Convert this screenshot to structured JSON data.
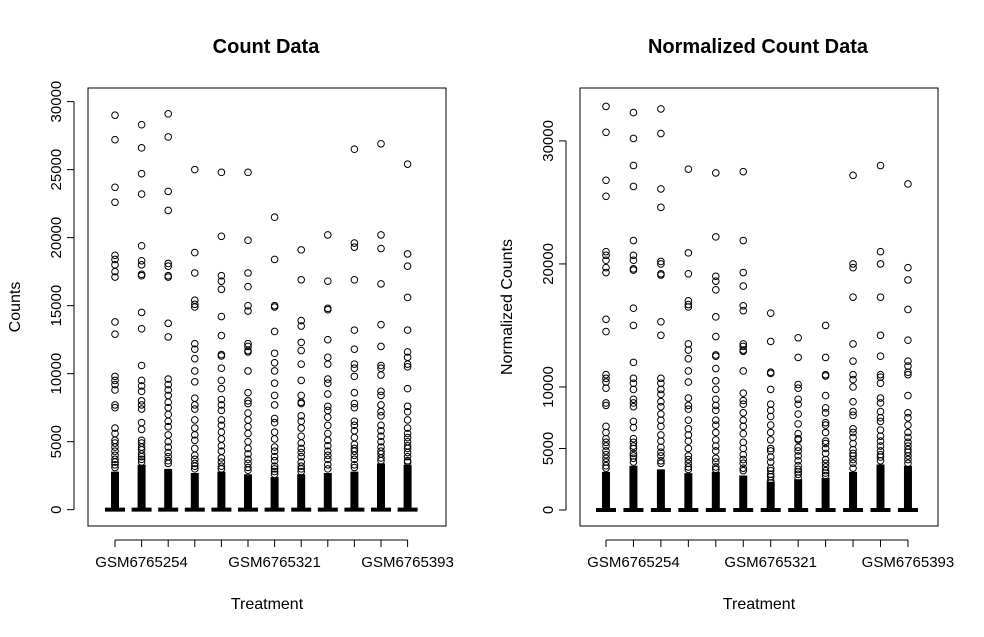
{
  "chart_data": [
    {
      "type": "boxplot",
      "title": "Count Data",
      "xlabel": "Treatment",
      "ylabel": "Counts",
      "ylim": [
        -1200,
        31000
      ],
      "yticks": [
        0,
        5000,
        10000,
        15000,
        20000,
        25000,
        30000
      ],
      "y_tick_labels": [
        "0",
        "5000",
        "10000",
        "15000",
        "20000",
        "25000",
        "30000"
      ],
      "x_tick_labels": [
        "GSM6765254",
        "GSM6765321",
        "GSM6765393"
      ],
      "x_tick_positions": [
        2,
        7,
        12
      ],
      "n_groups": 12,
      "box_whisker_top": [
        2800,
        3300,
        3000,
        2700,
        2800,
        2600,
        2400,
        2600,
        2700,
        2800,
        3400,
        3300
      ],
      "outliers": [
        [
          29000,
          27200,
          23700,
          22600,
          18700,
          18400,
          18000,
          17500,
          17100,
          13800,
          12900,
          9800,
          9500,
          9200,
          8800,
          7700,
          7500,
          6000,
          5600,
          5100,
          4900,
          4600,
          4300,
          4000,
          3700,
          3500,
          3300,
          3100
        ],
        [
          28300,
          26600,
          24700,
          23200,
          19400,
          18300,
          18000,
          17300,
          17200,
          14500,
          13300,
          10600,
          9500,
          9100,
          8700,
          8000,
          7700,
          7400,
          6400,
          5900,
          5100,
          4900,
          4600,
          4400,
          4100,
          3900,
          3700,
          3500
        ],
        [
          29100,
          27400,
          23400,
          22000,
          18100,
          17900,
          17200,
          17100,
          13700,
          12700,
          9600,
          9200,
          8800,
          8400,
          7900,
          7500,
          7000,
          6500,
          6100,
          5500,
          5000,
          4600,
          4200,
          3900,
          3600,
          3400
        ],
        [
          25000,
          18900,
          17400,
          15400,
          15100,
          14900,
          12200,
          11800,
          11100,
          10200,
          9400,
          8200,
          7700,
          7400,
          6600,
          6000,
          5500,
          5100,
          4500,
          4000,
          3700,
          3400,
          3200,
          3000
        ],
        [
          24800,
          20100,
          17200,
          16800,
          16200,
          14200,
          12800,
          11400,
          11300,
          10400,
          9500,
          8900,
          8100,
          7700,
          7300,
          6600,
          6200,
          5700,
          5200,
          4700,
          4300,
          3800,
          3500,
          3200,
          3000
        ],
        [
          24800,
          19800,
          17400,
          16400,
          15000,
          14600,
          12200,
          12000,
          11700,
          11600,
          10200,
          8600,
          8000,
          7800,
          7100,
          6600,
          6100,
          5600,
          5000,
          4500,
          4100,
          3700,
          3400,
          3100,
          2900
        ],
        [
          21500,
          18400,
          15000,
          14900,
          13100,
          11500,
          10800,
          10200,
          9300,
          8400,
          7700,
          6700,
          6400,
          5700,
          5200,
          4600,
          4300,
          3900,
          3600,
          3200,
          3000,
          2800,
          2600
        ],
        [
          19100,
          16900,
          13900,
          13500,
          12300,
          11700,
          10700,
          9500,
          8400,
          7900,
          7800,
          6900,
          6500,
          6000,
          5400,
          4900,
          4500,
          4200,
          3900,
          3500,
          3200,
          3000,
          2800
        ],
        [
          20200,
          16800,
          14800,
          14700,
          12500,
          11200,
          10700,
          9600,
          9300,
          8500,
          7600,
          7300,
          6800,
          6200,
          5600,
          5100,
          4700,
          4300,
          4000,
          3700,
          3300,
          3000
        ],
        [
          26500,
          19600,
          19300,
          16900,
          13200,
          11800,
          10700,
          10400,
          9800,
          8600,
          7800,
          7500,
          6500,
          6200,
          5800,
          5300,
          4800,
          4500,
          4300,
          4000,
          3700,
          3300,
          3100
        ],
        [
          26900,
          20200,
          19200,
          16600,
          13600,
          12000,
          10600,
          10400,
          9900,
          8700,
          8400,
          7700,
          7200,
          6900,
          6200,
          5800,
          5400,
          5000,
          4600,
          4300,
          4100,
          3800,
          3600
        ],
        [
          25400,
          18800,
          17900,
          15600,
          13200,
          11600,
          11200,
          10700,
          10500,
          8900,
          7600,
          7200,
          6600,
          6000,
          5600,
          5300,
          5000,
          4700,
          4500,
          4200,
          3900,
          3600,
          3500
        ]
      ]
    },
    {
      "type": "boxplot",
      "title": "Normalized Count Data",
      "xlabel": "Treatment",
      "ylabel": "Normalized Counts",
      "ylim": [
        -1300,
        34300
      ],
      "yticks": [
        0,
        5000,
        10000,
        20000,
        30000
      ],
      "y_tick_labels": [
        "0",
        "5000",
        "10000",
        "20000",
        "30000"
      ],
      "x_tick_labels": [
        "GSM6765254",
        "GSM6765321",
        "GSM6765393"
      ],
      "x_tick_positions": [
        2,
        7,
        12
      ],
      "n_groups": 12,
      "box_whisker_top": [
        3100,
        3600,
        3300,
        3000,
        3100,
        2800,
        2300,
        2500,
        2600,
        3100,
        3700,
        3600
      ],
      "outliers": [
        [
          32800,
          30700,
          26800,
          25500,
          21000,
          20700,
          20300,
          19700,
          19300,
          15500,
          14500,
          11000,
          10700,
          10400,
          9900,
          8700,
          8500,
          6800,
          6300,
          5800,
          5500,
          5200,
          4800,
          4500,
          4200,
          3900,
          3600,
          3400
        ],
        [
          32300,
          30200,
          28000,
          26300,
          21900,
          20700,
          20300,
          19600,
          19500,
          16400,
          15000,
          12000,
          10700,
          10300,
          9800,
          9000,
          8700,
          8400,
          7200,
          6700,
          5800,
          5500,
          5200,
          5000,
          4600,
          4400,
          4200,
          3900
        ],
        [
          32600,
          30600,
          26100,
          24600,
          20200,
          20000,
          19200,
          19100,
          15300,
          14200,
          10700,
          10300,
          9800,
          9400,
          8800,
          8400,
          7800,
          7300,
          6800,
          6100,
          5600,
          5100,
          4700,
          4400,
          4000,
          3800
        ],
        [
          27700,
          20900,
          19200,
          17000,
          16700,
          16500,
          13500,
          13000,
          12300,
          11300,
          10400,
          9100,
          8500,
          8200,
          7300,
          6600,
          6100,
          5600,
          5000,
          4400,
          4100,
          3800,
          3500,
          3300
        ],
        [
          27400,
          22200,
          19000,
          18600,
          17900,
          15700,
          14100,
          12600,
          12500,
          11500,
          10500,
          9800,
          9000,
          8500,
          8100,
          7300,
          6900,
          6300,
          5700,
          5200,
          4800,
          4200,
          3900,
          3500,
          3300
        ],
        [
          27500,
          21900,
          19300,
          18200,
          16600,
          16200,
          13500,
          13300,
          13000,
          12900,
          11300,
          9500,
          8900,
          8600,
          7900,
          7300,
          6800,
          6200,
          5500,
          5000,
          4500,
          4100,
          3800,
          3400,
          3200
        ],
        [
          16000,
          13700,
          11200,
          11100,
          9800,
          8600,
          8100,
          7600,
          6900,
          6300,
          5700,
          5000,
          4800,
          4300,
          3900,
          3400,
          3200,
          2900,
          2700,
          2400,
          2200
        ],
        [
          14000,
          12400,
          10200,
          9900,
          9000,
          8600,
          7800,
          7000,
          6200,
          5800,
          5700,
          5100,
          4800,
          4400,
          4000,
          3600,
          3300,
          3100,
          2900,
          2600
        ],
        [
          15000,
          12400,
          11000,
          10900,
          9300,
          8300,
          7900,
          7100,
          6900,
          6300,
          5600,
          5400,
          5000,
          4600,
          4100,
          3800,
          3500,
          3200,
          3000,
          2800
        ],
        [
          27200,
          20000,
          19700,
          17300,
          13500,
          12100,
          11000,
          10600,
          10000,
          8800,
          8000,
          7700,
          6600,
          6300,
          5900,
          5400,
          4900,
          4600,
          4400,
          4100,
          3800,
          3400
        ],
        [
          28000,
          21000,
          20000,
          17300,
          14200,
          12500,
          11000,
          10800,
          10300,
          9100,
          8700,
          8000,
          7500,
          7200,
          6500,
          6000,
          5600,
          5200,
          4800,
          4500,
          4300,
          4000
        ],
        [
          26500,
          19700,
          18700,
          16300,
          13800,
          12100,
          11700,
          11200,
          11000,
          9300,
          7900,
          7500,
          6900,
          6300,
          5900,
          5500,
          5200,
          4900,
          4700,
          4400,
          4100,
          3800
        ]
      ]
    }
  ]
}
